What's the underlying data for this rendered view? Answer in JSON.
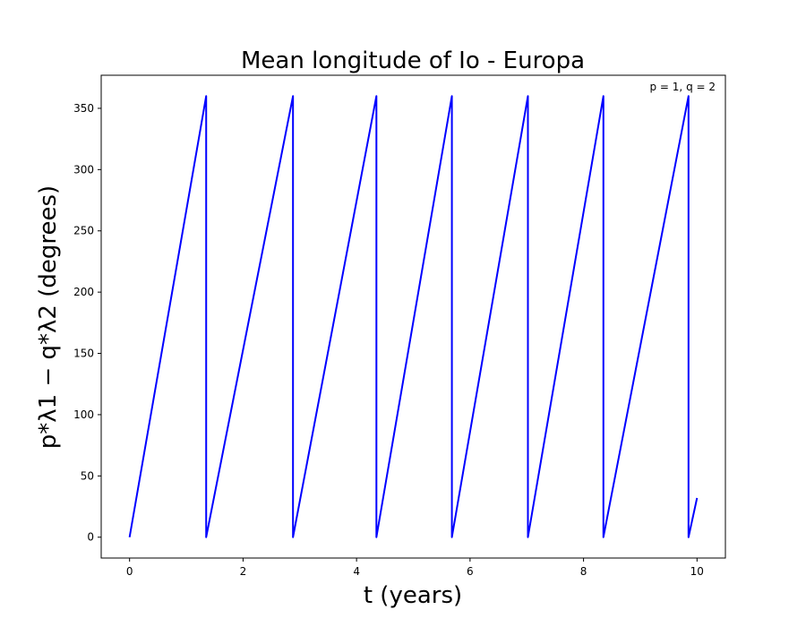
{
  "chart_data": {
    "type": "line",
    "title": "Mean longitude of Io - Europa",
    "xlabel": "t (years)",
    "ylabel": "p*λ1 − q*λ2 (degrees)",
    "annotation": "p = 1, q = 2",
    "xlim": [
      -0.5,
      10.5
    ],
    "ylim": [
      -17,
      377
    ],
    "xticks": [
      0,
      2,
      4,
      6,
      8,
      10
    ],
    "yticks": [
      0,
      50,
      100,
      150,
      200,
      250,
      300,
      350
    ],
    "grid": false,
    "series": [
      {
        "color": "#0000ff",
        "x": [
          0,
          1.35,
          1.35,
          2.88,
          2.88,
          4.35,
          4.35,
          5.68,
          5.68,
          7.02,
          7.02,
          8.35,
          8.35,
          9.85,
          9.85,
          10.0
        ],
        "y": [
          0,
          360,
          0,
          360,
          0,
          360,
          0,
          360,
          0,
          360,
          0,
          360,
          0,
          360,
          0,
          32
        ]
      }
    ]
  }
}
